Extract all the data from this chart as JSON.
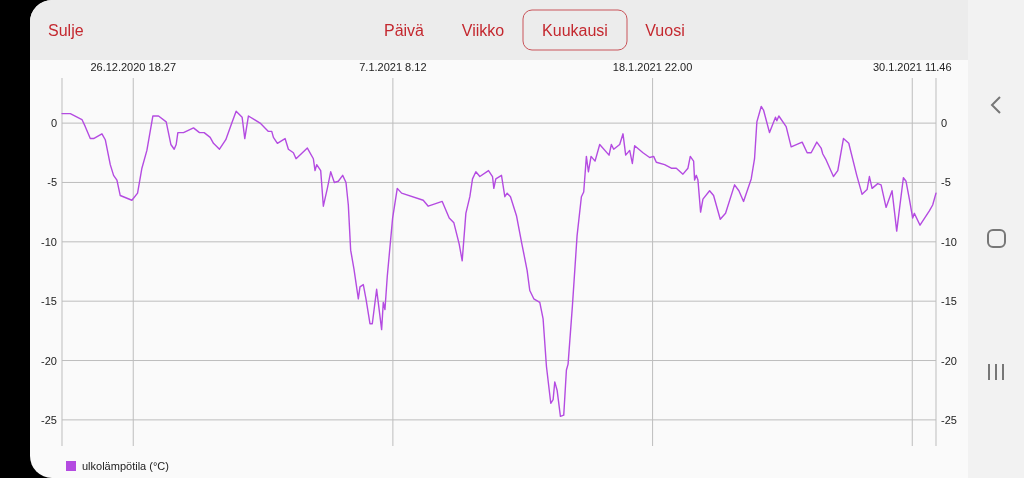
{
  "chart_data": {
    "type": "line",
    "annotations": [
      "Sulje",
      "Päivä",
      "Viikko",
      "Kuukausi",
      "Vuosi"
    ],
    "xlim": [
      "2020-12-23T14:15",
      "2021-01-31T13:10"
    ],
    "xticks": [
      {
        "value": "2020-12-26T18:27",
        "label": "26.12.2020 18.27"
      },
      {
        "value": "2021-01-07T08:12",
        "label": "7.1.2021 8.12"
      },
      {
        "value": "2021-01-18T22:00",
        "label": "18.1.2021 22.00"
      },
      {
        "value": "2021-01-30T11:46",
        "label": "30.1.2021 11.46"
      }
    ],
    "ylim": [
      -27.2,
      3.8
    ],
    "yticks": [
      0,
      -5,
      -10,
      -15,
      -20,
      -25
    ],
    "y2lim": [
      -27.2,
      3.8
    ],
    "y2ticks": [
      0,
      -5,
      -10,
      -15,
      -20,
      -25
    ],
    "grid": true,
    "legend": "bottom left",
    "marker": "none",
    "line_style": "solid",
    "x": [
      "2020-12-23T14:15",
      "2020-12-23T23:08",
      "2020-12-24T11:36",
      "2020-12-24T15:10",
      "2020-12-24T20:30",
      "2020-12-25T00:04",
      "2020-12-25T08:58",
      "2020-12-25T12:32",
      "2020-12-25T17:53",
      "2020-12-25T21:26",
      "2020-12-26T01:00",
      "2020-12-26T04:34",
      "2020-12-26T17:02",
      "2020-12-26T23:05",
      "2020-12-27T03:43",
      "2020-12-27T09:03",
      "2020-12-27T15:28",
      "2020-12-27T21:31",
      "2020-12-28T05:43",
      "2020-12-28T10:42",
      "2020-12-28T14:16",
      "2020-12-28T16:24",
      "2020-12-28T18:11",
      "2020-12-29T00:14",
      "2020-12-29T10:55",
      "2020-12-29T17:19",
      "2020-12-29T22:19",
      "2020-12-30T04:44",
      "2020-12-30T08:17",
      "2020-12-30T14:42",
      "2020-12-30T21:28",
      "2020-12-31T03:53",
      "2020-12-31T08:31",
      "2020-12-31T14:55",
      "2020-12-31T17:46",
      "2020-12-31T21:41",
      "2021-01-01T10:09",
      "2021-01-01T19:03",
      "2021-01-01T22:37",
      "2021-01-02T00:24",
      "2021-01-02T04:40",
      "2021-01-02T12:52",
      "2021-01-02T16:25",
      "2021-01-02T21:46",
      "2021-01-03T00:37",
      "2021-01-03T12:43",
      "2021-01-03T19:08",
      "2021-01-03T20:55",
      "2021-01-03T22:42",
      "2021-01-04T02:59",
      "2021-01-04T05:49",
      "2021-01-04T10:05",
      "2021-01-04T13:40",
      "2021-01-04T17:34",
      "2021-01-04T21:51",
      "2021-01-05T02:29",
      "2021-01-05T06:02",
      "2021-01-05T08:32",
      "2021-01-05T11:02",
      "2021-01-05T14:35",
      "2021-01-05T19:13",
      "2021-01-05T21:00",
      "2021-01-06T00:34",
      "2021-01-06T03:25",
      "2021-01-06T07:41",
      "2021-01-06T10:11",
      "2021-01-06T14:49",
      "2021-01-06T20:09",
      "2021-01-06T21:56",
      "2021-01-06T23:43",
      "2021-01-07T02:12",
      "2021-01-07T07:55",
      "2021-01-07T12:53",
      "2021-01-07T17:31",
      "2021-01-08T16:40",
      "2021-01-08T22:01",
      "2021-01-09T12:58",
      "2021-01-09T20:27",
      "2021-01-10T01:26",
      "2021-01-10T07:08",
      "2021-01-10T10:20",
      "2021-01-10T14:16",
      "2021-01-10T18:32",
      "2021-01-10T21:23",
      "2021-01-11T00:57",
      "2021-01-11T05:13",
      "2021-01-11T14:29",
      "2021-01-11T18:46",
      "2021-01-11T20:11",
      "2021-01-11T22:19",
      "2021-01-12T04:22",
      "2021-01-12T07:56",
      "2021-01-12T10:25",
      "2021-01-12T13:59",
      "2021-01-12T20:24",
      "2021-01-13T01:44",
      "2021-01-13T07:47",
      "2021-01-13T10:38",
      "2021-01-13T14:55",
      "2021-01-13T21:20",
      "2021-01-14T00:53",
      "2021-01-14T04:28",
      "2021-01-14T09:05",
      "2021-01-14T11:35",
      "2021-01-14T13:22",
      "2021-01-14T15:51",
      "2021-01-14T19:25",
      "2021-01-14T22:58",
      "2021-01-15T01:49",
      "2021-01-15T03:36",
      "2021-01-15T08:14",
      "2021-01-15T13:13",
      "2021-01-15T17:51",
      "2021-01-15T20:20",
      "2021-01-15T23:11",
      "2021-01-16T01:20",
      "2021-01-16T04:11",
      "2021-01-16T08:27",
      "2021-01-16T13:26",
      "2021-01-16T23:25",
      "2021-01-17T01:55",
      "2021-01-17T04:24",
      "2021-01-17T10:49",
      "2021-01-17T14:22",
      "2021-01-17T17:13",
      "2021-01-17T21:30",
      "2021-01-18T00:21",
      "2021-01-18T02:50",
      "2021-01-18T11:44",
      "2021-01-18T18:52",
      "2021-01-18T23:08",
      "2021-01-19T01:59",
      "2021-01-19T10:53",
      "2021-01-19T18:01",
      "2021-01-19T23:22",
      "2021-01-20T06:29",
      "2021-01-20T11:49",
      "2021-01-20T14:19",
      "2021-01-20T17:53",
      "2021-01-20T18:57",
      "2021-01-20T20:44",
      "2021-01-20T22:31",
      "2021-01-21T01:22",
      "2021-01-21T03:51",
      "2021-01-21T10:59",
      "2021-01-21T15:15",
      "2021-01-21T22:23",
      "2021-01-22T04:04",
      "2021-01-22T13:41",
      "2021-01-22T18:19",
      "2021-01-22T23:18",
      "2021-01-23T07:30",
      "2021-01-23T11:04",
      "2021-01-23T13:33",
      "2021-01-23T18:11",
      "2021-01-23T20:40",
      "2021-01-24T03:05",
      "2021-01-24T09:29",
      "2021-01-24T10:55",
      "2021-01-24T13:03",
      "2021-01-24T20:53",
      "2021-01-25T02:14",
      "2021-01-25T14:00",
      "2021-01-25T19:20",
      "2021-01-25T23:37",
      "2021-01-26T05:40",
      "2021-01-26T10:17",
      "2021-01-26T12:04",
      "2021-01-26T15:38",
      "2021-01-26T23:28",
      "2021-01-27T04:06",
      "2021-01-27T10:10",
      "2021-01-27T15:51",
      "2021-01-28T00:24",
      "2021-01-28T06:06",
      "2021-01-28T11:26",
      "2021-01-28T13:56",
      "2021-01-28T16:47",
      "2021-01-28T22:50",
      "2021-01-29T02:25",
      "2021-01-29T07:45",
      "2021-01-29T14:10",
      "2021-01-29T16:39",
      "2021-01-29T19:08",
      "2021-01-30T02:16",
      "2021-01-30T05:07",
      "2021-01-30T08:41",
      "2021-01-30T12:14",
      "2021-01-30T14:01",
      "2021-01-30T20:05",
      "2021-01-31T06:03",
      "2021-01-31T09:37",
      "2021-01-31T13:10"
    ],
    "series": [
      {
        "name": "ulkolämpötila (°C)",
        "color": "#b44be1",
        "values": [
          0.8,
          0.8,
          0.3,
          -0.3,
          -1.3,
          -1.3,
          -0.9,
          -1.4,
          -3.5,
          -4.4,
          -4.8,
          -6.1,
          -6.5,
          -5.9,
          -3.8,
          -2.3,
          0.6,
          0.6,
          0.1,
          -1.8,
          -2.2,
          -1.8,
          -0.8,
          -0.8,
          -0.4,
          -0.8,
          -0.8,
          -1.2,
          -1.7,
          -2.2,
          -1.4,
          0.0,
          1.0,
          0.5,
          -1.3,
          0.6,
          0.0,
          -0.7,
          -0.7,
          -1.2,
          -1.7,
          -1.3,
          -2.2,
          -2.5,
          -3.0,
          -2.1,
          -3.0,
          -4.0,
          -3.5,
          -4.0,
          -7.0,
          -5.5,
          -4.1,
          -5.0,
          -4.9,
          -4.4,
          -5.0,
          -6.9,
          -10.7,
          -12.3,
          -14.8,
          -13.8,
          -13.6,
          -14.8,
          -16.9,
          -16.9,
          -14.0,
          -17.4,
          -15.1,
          -15.7,
          -12.9,
          -8.0,
          -5.5,
          -5.9,
          -6.5,
          -7.0,
          -6.6,
          -8.0,
          -8.4,
          -10.2,
          -11.6,
          -7.6,
          -6.2,
          -4.7,
          -4.1,
          -4.5,
          -4.0,
          -4.5,
          -5.5,
          -4.7,
          -4.4,
          -6.2,
          -5.9,
          -6.2,
          -7.8,
          -10.0,
          -12.4,
          -14.1,
          -14.8,
          -15.1,
          -16.5,
          -20.5,
          -23.6,
          -23.3,
          -21.8,
          -22.5,
          -24.7,
          -24.6,
          -20.8,
          -20.3,
          -15.4,
          -9.5,
          -6.2,
          -5.8,
          -2.8,
          -4.1,
          -2.8,
          -3.2,
          -1.8,
          -2.7,
          -1.8,
          -2.2,
          -1.8,
          -0.9,
          -2.7,
          -2.3,
          -3.4,
          -1.9,
          -2.5,
          -2.9,
          -2.8,
          -3.3,
          -3.5,
          -3.8,
          -3.8,
          -4.3,
          -3.8,
          -2.8,
          -3.2,
          -4.8,
          -4.4,
          -4.8,
          -7.5,
          -6.4,
          -5.7,
          -6.1,
          -8.1,
          -7.6,
          -5.2,
          -5.7,
          -6.6,
          -4.7,
          -3.0,
          0.1,
          1.4,
          1.1,
          -0.8,
          0.5,
          0.2,
          0.6,
          -0.3,
          -2.0,
          -1.6,
          -2.5,
          -2.5,
          -1.6,
          -2.1,
          -2.6,
          -3.1,
          -4.5,
          -4.0,
          -1.3,
          -1.7,
          -4.4,
          -6.0,
          -5.6,
          -4.5,
          -5.5,
          -5.1,
          -5.2,
          -7.1,
          -5.7,
          -7.4,
          -9.1,
          -4.6,
          -4.9,
          -6.4,
          -8.0,
          -7.6,
          -8.6,
          -7.4,
          -6.9,
          -5.9
        ]
      }
    ]
  }
}
